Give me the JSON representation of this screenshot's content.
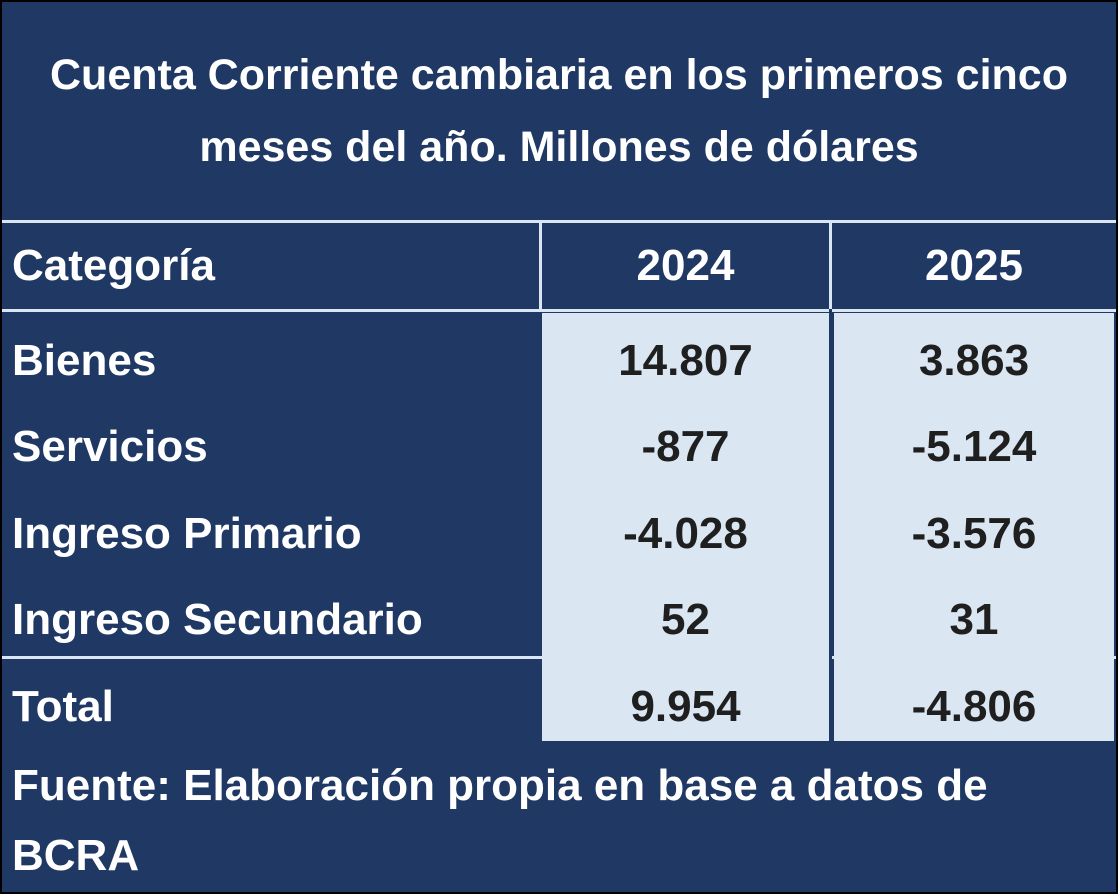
{
  "title": "Cuenta Corriente cambiaria en los primeros cinco meses del año. Millones de dólares",
  "header": {
    "category": "Categoría",
    "col1": "2024",
    "col2": "2025"
  },
  "rows": [
    {
      "label": "Bienes",
      "v2024": "14.807",
      "v2025": "3.863"
    },
    {
      "label": "Servicios",
      "v2024": "-877",
      "v2025": "-5.124"
    },
    {
      "label": "Ingreso Primario",
      "v2024": "-4.028",
      "v2025": "-3.576"
    },
    {
      "label": "Ingreso Secundario",
      "v2024": "52",
      "v2025": "31"
    }
  ],
  "total": {
    "label": "Total",
    "v2024": "9.954",
    "v2025": "-4.806"
  },
  "source": "Fuente: Elaboración propia en base a datos de BCRA",
  "colors": {
    "background": "#1f3864",
    "cell_fill": "#dbe6f3",
    "header_text": "#ffffff",
    "value_text": "#1f1f1f"
  }
}
